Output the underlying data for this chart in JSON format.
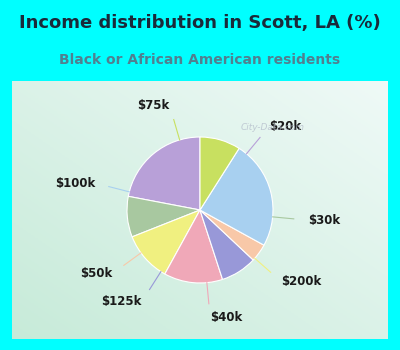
{
  "title": "Income distribution in Scott, LA (%)",
  "subtitle": "Black or African American residents",
  "watermark": "City-Data.com",
  "bg_cyan": "#00FFFF",
  "bg_chart_left": "#c8ead8",
  "bg_chart_right": "#e8f8f0",
  "slices": [
    {
      "label": "$20k",
      "value": 22,
      "color": "#b8a0d8"
    },
    {
      "label": "$30k",
      "value": 9,
      "color": "#a8c8a0"
    },
    {
      "label": "$200k",
      "value": 11,
      "color": "#f0f080"
    },
    {
      "label": "$40k",
      "value": 13,
      "color": "#f0a8b8"
    },
    {
      "label": "$125k",
      "value": 8,
      "color": "#9898d8"
    },
    {
      "label": "$50k",
      "value": 4,
      "color": "#f8c8a8"
    },
    {
      "label": "$100k",
      "value": 24,
      "color": "#a8d0f0"
    },
    {
      "label": "$75k",
      "value": 9,
      "color": "#c8e060"
    }
  ],
  "title_fontsize": 13,
  "subtitle_fontsize": 10,
  "label_fontsize": 8.5
}
